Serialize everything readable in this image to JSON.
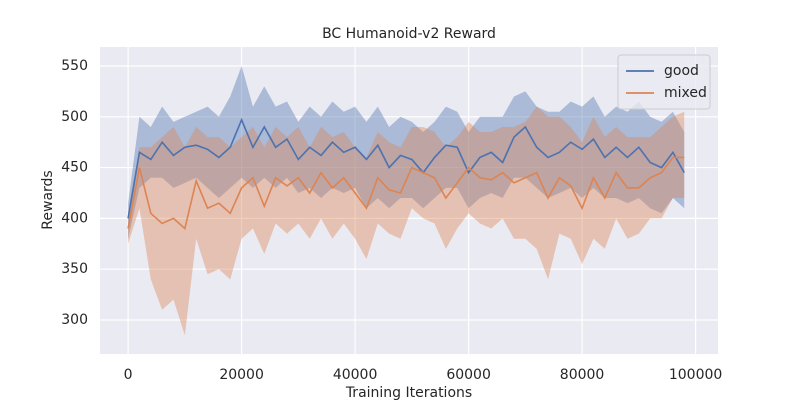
{
  "chart_data": {
    "type": "line",
    "title": "BC Humanoid-v2 Reward",
    "xlabel": "Training Iterations",
    "ylabel": "Rewards",
    "x": [
      0,
      2000,
      4000,
      6000,
      8000,
      10000,
      12000,
      14000,
      16000,
      18000,
      20000,
      22000,
      24000,
      26000,
      28000,
      30000,
      32000,
      34000,
      36000,
      38000,
      40000,
      42000,
      44000,
      46000,
      48000,
      50000,
      52000,
      54000,
      56000,
      58000,
      60000,
      62000,
      64000,
      66000,
      68000,
      70000,
      72000,
      74000,
      76000,
      78000,
      80000,
      82000,
      84000,
      86000,
      88000,
      90000,
      92000,
      94000,
      96000,
      98000
    ],
    "series": [
      {
        "name": "good",
        "color": "#4c72b0",
        "values": [
          400,
          465,
          458,
          475,
          462,
          470,
          472,
          468,
          460,
          470,
          497,
          470,
          490,
          470,
          478,
          458,
          470,
          462,
          475,
          465,
          470,
          458,
          472,
          450,
          462,
          458,
          445,
          460,
          472,
          470,
          445,
          460,
          465,
          455,
          480,
          490,
          470,
          460,
          465,
          475,
          468,
          478,
          460,
          470,
          460,
          470,
          455,
          450,
          465,
          445
        ],
        "lower": [
          380,
          430,
          440,
          440,
          430,
          435,
          440,
          430,
          420,
          430,
          440,
          430,
          440,
          430,
          440,
          425,
          430,
          420,
          430,
          425,
          430,
          410,
          420,
          410,
          420,
          420,
          410,
          420,
          430,
          430,
          410,
          420,
          425,
          420,
          440,
          440,
          430,
          420,
          425,
          430,
          420,
          430,
          420,
          420,
          415,
          420,
          410,
          405,
          420,
          410
        ],
        "upper": [
          415,
          500,
          490,
          510,
          495,
          500,
          505,
          510,
          500,
          520,
          550,
          510,
          530,
          510,
          515,
          495,
          510,
          500,
          515,
          505,
          510,
          495,
          510,
          490,
          500,
          495,
          485,
          495,
          510,
          505,
          485,
          500,
          500,
          500,
          520,
          525,
          510,
          505,
          505,
          515,
          510,
          520,
          500,
          510,
          505,
          515,
          500,
          495,
          505,
          485
        ]
      },
      {
        "name": "mixed",
        "color": "#dd8452",
        "values": [
          390,
          450,
          405,
          395,
          400,
          390,
          437,
          410,
          415,
          405,
          430,
          440,
          412,
          440,
          432,
          440,
          425,
          445,
          430,
          440,
          425,
          410,
          440,
          428,
          425,
          450,
          445,
          440,
          420,
          435,
          450,
          440,
          438,
          445,
          435,
          440,
          445,
          420,
          440,
          432,
          410,
          440,
          420,
          445,
          430,
          430,
          440,
          445,
          460,
          460
        ],
        "lower": [
          375,
          410,
          340,
          310,
          320,
          285,
          380,
          345,
          350,
          340,
          380,
          390,
          365,
          395,
          385,
          395,
          380,
          400,
          380,
          395,
          380,
          360,
          395,
          385,
          380,
          410,
          400,
          395,
          370,
          390,
          405,
          395,
          390,
          400,
          380,
          380,
          370,
          340,
          385,
          380,
          355,
          380,
          370,
          400,
          380,
          385,
          400,
          400,
          420,
          420
        ],
        "upper": [
          405,
          470,
          470,
          480,
          490,
          470,
          490,
          480,
          480,
          470,
          480,
          490,
          470,
          490,
          480,
          490,
          470,
          490,
          480,
          485,
          470,
          460,
          485,
          475,
          470,
          490,
          490,
          485,
          470,
          480,
          495,
          485,
          485,
          490,
          490,
          495,
          510,
          500,
          500,
          490,
          475,
          500,
          480,
          490,
          480,
          480,
          480,
          490,
          500,
          505
        ]
      }
    ],
    "xlim": [
      -4950,
      103950
    ],
    "xticks": [
      0,
      20000,
      40000,
      60000,
      80000,
      100000
    ],
    "ylim": [
      266.5,
      568.7
    ],
    "yticks": [
      300,
      350,
      400,
      450,
      500,
      550
    ],
    "grid": true,
    "legend": "upper right"
  }
}
